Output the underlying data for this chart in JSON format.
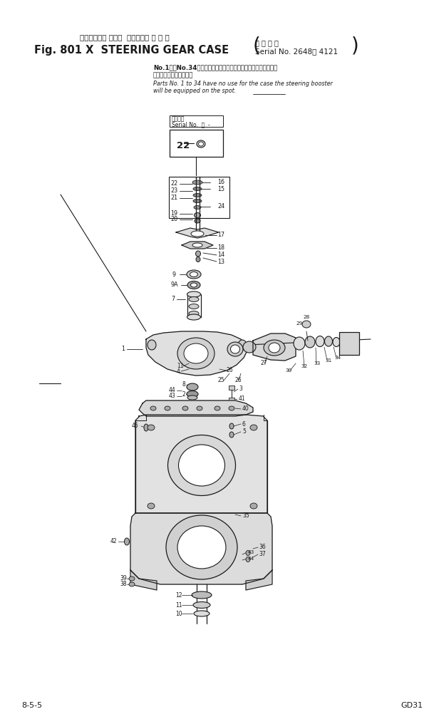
{
  "title_jp": "ステアリング ギヤー  ケース（適 用 号 機",
  "title_en_prefix": "Fig. 801 X  STEERING GEAR CASE",
  "serial_line1": "適 用 号 機",
  "serial_line2": "Serial No. 2648～ 4121",
  "note_jp1": "No.1からNo.34までの部品は現地でステアリングブースタを装着",
  "note_jp2": "する場合には不要です。",
  "note_en1": "Parts No. 1 to 34 have no use for the case the steering booster",
  "note_en2": "will be equipped on the spot.",
  "serial_box_label": "適用号機",
  "serial_box_text": "Serial No.  ・  -",
  "footer_left": "8-5-5",
  "footer_right": "GD31",
  "bg": "#ffffff",
  "ink": "#1a1a1a"
}
